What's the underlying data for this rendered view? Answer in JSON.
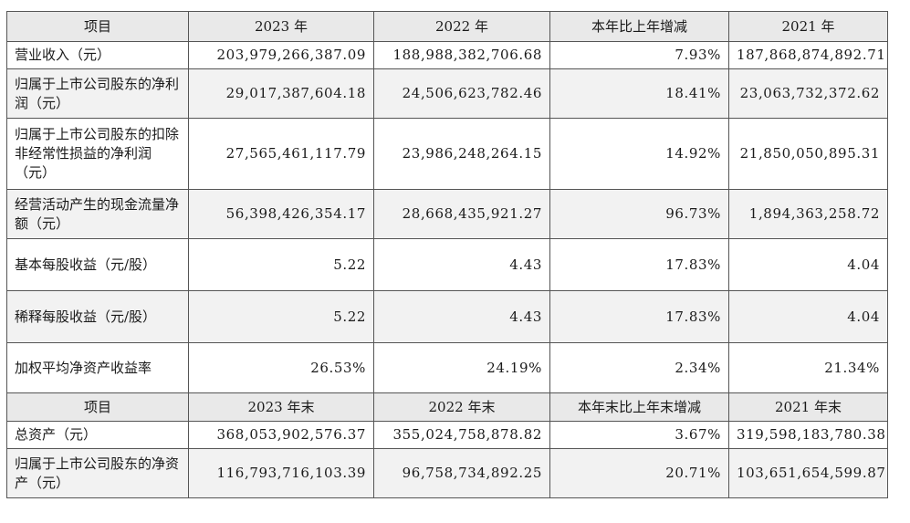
{
  "header1": [
    "项目",
    "2023 年",
    "2022 年",
    "本年比上年增减",
    "2021 年"
  ],
  "rows1": [
    {
      "label": "营业收入（元）",
      "values": [
        "203,979,266,387.09",
        "188,988,382,706.68",
        "7.93%",
        "187,868,874,892.71"
      ]
    },
    {
      "label": "归属于上市公司股东的净利润（元）",
      "values": [
        "29,017,387,604.18",
        "24,506,623,782.46",
        "18.41%",
        "23,063,732,372.62"
      ]
    },
    {
      "label": "归属于上市公司股东的扣除非经常性损益的净利润（元）",
      "values": [
        "27,565,461,117.79",
        "23,986,248,264.15",
        "14.92%",
        "21,850,050,895.31"
      ]
    },
    {
      "label": "经营活动产生的现金流量净额（元）",
      "values": [
        "56,398,426,354.17",
        "28,668,435,921.27",
        "96.73%",
        "1,894,363,258.72"
      ]
    },
    {
      "label": "基本每股收益（元/股）",
      "values": [
        "5.22",
        "4.43",
        "17.83%",
        "4.04"
      ]
    },
    {
      "label": "稀释每股收益（元/股）",
      "values": [
        "5.22",
        "4.43",
        "17.83%",
        "4.04"
      ]
    },
    {
      "label": "加权平均净资产收益率",
      "values": [
        "26.53%",
        "24.19%",
        "2.34%",
        "21.34%"
      ]
    }
  ],
  "header2": [
    "项目",
    "2023 年末",
    "2022 年末",
    "本年末比上年末增减",
    "2021 年末"
  ],
  "rows2": [
    {
      "label": "总资产（元）",
      "values": [
        "368,053,902,576.37",
        "355,024,758,878.82",
        "3.67%",
        "319,598,183,780.38"
      ]
    },
    {
      "label": "归属于上市公司股东的净资产（元）",
      "values": [
        "116,793,716,103.39",
        "96,758,734,892.25",
        "20.71%",
        "103,651,654,599.87"
      ]
    }
  ]
}
